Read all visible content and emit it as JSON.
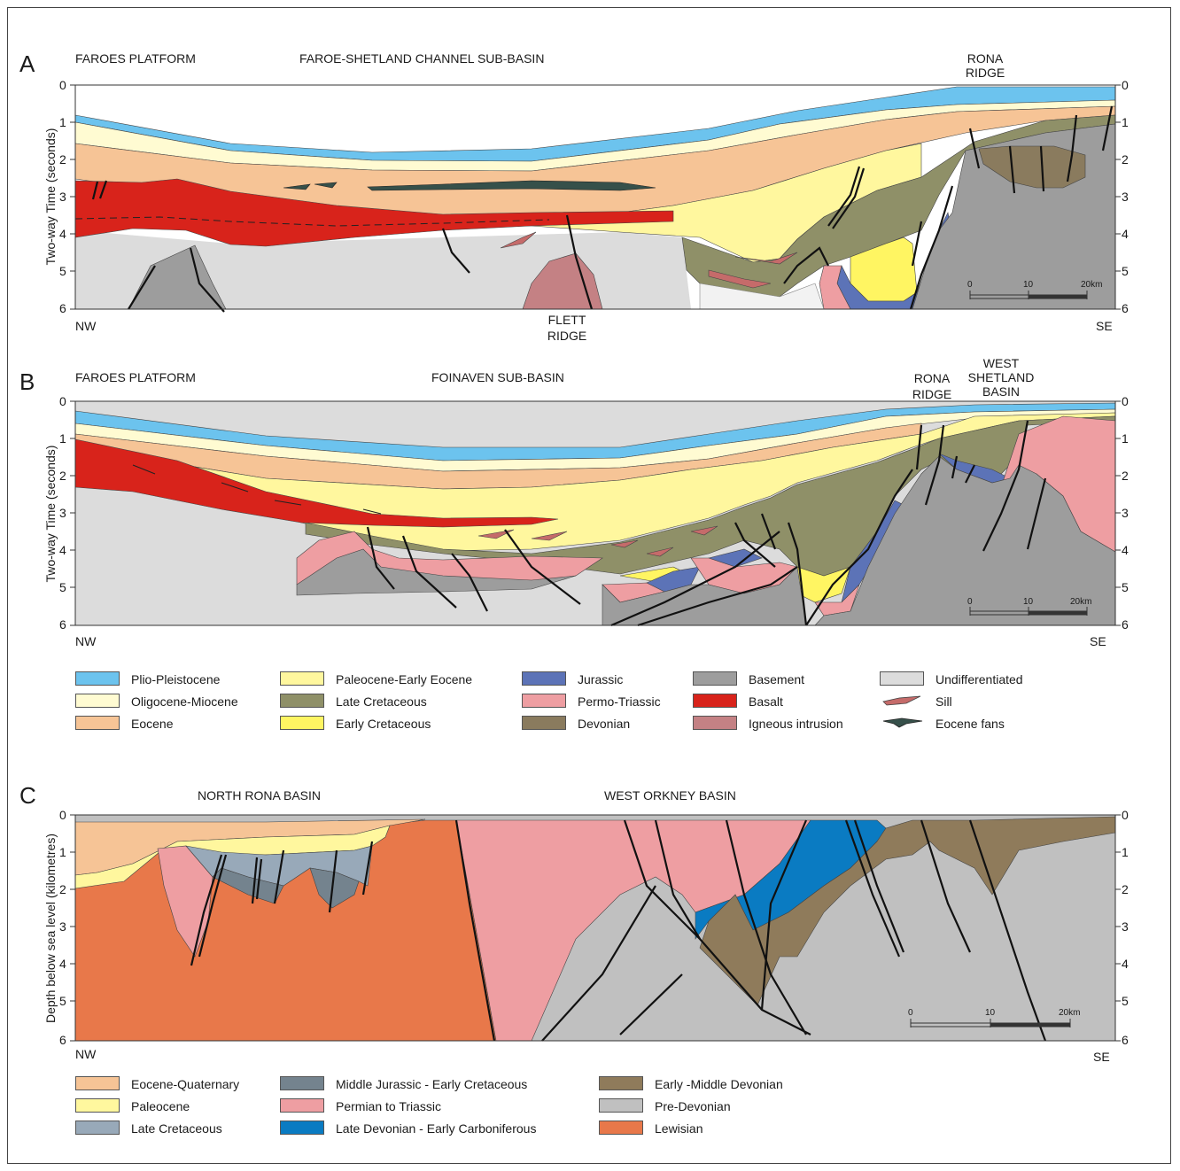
{
  "colors": {
    "plio_pleistocene": "#6cc3ee",
    "oligocene_miocene": "#fffbd2",
    "eocene": "#f6c496",
    "paleocene_early_eocene": "#fff79e",
    "late_cretaceous": "#8f9068",
    "early_cretaceous": "#fff562",
    "jurassic": "#5c73b7",
    "permo_triassic": "#ee9ea2",
    "devonian": "#8a7b5e",
    "basement": "#9d9d9d",
    "basalt": "#d8231b",
    "igneous_intrusion": "#c48184",
    "undifferentiated": "#dcdcdc",
    "sill": "#c56b6a",
    "eocene_fans": "#36504a",
    "eocene_quaternary": "#f6c496",
    "paleocene": "#fff79e",
    "late_cretaceous_c": "#98a9b9",
    "middle_jurassic_early_cretaceous": "#74838e",
    "permian_to_triassic": "#ee9ea2",
    "late_devonian_early_carboniferous": "#0a7bc2",
    "early_middle_devonian": "#8f7b5b",
    "pre_devonian": "#c0c0c0",
    "lewisian": "#e8784a"
  },
  "panel_a": {
    "letter": "A",
    "labels": {
      "faroes_platform": "FAROES PLATFORM",
      "sub_basin": "FAROE-SHETLAND CHANNEL SUB-BASIN",
      "rona_ridge": "RONA\nRIDGE",
      "flett_ridge": "FLETT\nRIDGE",
      "nw": "NW",
      "se": "SE"
    },
    "y_axis_title": "Two-way Time (seconds)",
    "ticks": [
      "0",
      "1",
      "2",
      "3",
      "4",
      "5",
      "6"
    ],
    "scale": [
      "0",
      "10",
      "20km"
    ]
  },
  "panel_b": {
    "letter": "B",
    "labels": {
      "faroes_platform": "FAROES PLATFORM",
      "sub_basin": "FOINAVEN SUB-BASIN",
      "rona_ridge": "RONA\nRIDGE",
      "west_shetland": "WEST\nSHETLAND\nBASIN",
      "nw": "NW",
      "se": "SE"
    },
    "y_axis_title": "Two-way Time (seconds)",
    "ticks": [
      "0",
      "1",
      "2",
      "3",
      "4",
      "5",
      "6"
    ],
    "scale": [
      "0",
      "10",
      "20km"
    ]
  },
  "panel_c": {
    "letter": "C",
    "labels": {
      "north_rona": "NORTH RONA BASIN",
      "west_orkney": "WEST ORKNEY BASIN",
      "nw": "NW",
      "se": "SE"
    },
    "y_axis_title": "Depth below sea level (kilometres)",
    "ticks": [
      "0",
      "1",
      "2",
      "3",
      "4",
      "5",
      "6"
    ],
    "scale": [
      "0",
      "10",
      "20km"
    ]
  },
  "legend_ab": [
    {
      "label": "Plio-Pleistocene",
      "color_key": "plio_pleistocene"
    },
    {
      "label": "Oligocene-Miocene",
      "color_key": "oligocene_miocene"
    },
    {
      "label": "Eocene",
      "color_key": "eocene"
    },
    {
      "label": "Paleocene-Early Eocene",
      "color_key": "paleocene_early_eocene"
    },
    {
      "label": "Late Cretaceous",
      "color_key": "late_cretaceous"
    },
    {
      "label": "Early Cretaceous",
      "color_key": "early_cretaceous"
    },
    {
      "label": "Jurassic",
      "color_key": "jurassic"
    },
    {
      "label": "Permo-Triassic",
      "color_key": "permo_triassic"
    },
    {
      "label": "Devonian",
      "color_key": "devonian"
    },
    {
      "label": "Basement",
      "color_key": "basement"
    },
    {
      "label": "Basalt",
      "color_key": "basalt"
    },
    {
      "label": "Igneous intrusion",
      "color_key": "igneous_intrusion"
    },
    {
      "label": "Undifferentiated",
      "color_key": "undifferentiated"
    },
    {
      "label": "Sill",
      "color_key": "sill"
    },
    {
      "label": "Eocene fans",
      "color_key": "eocene_fans"
    }
  ],
  "legend_c": [
    {
      "label": "Eocene-Quaternary",
      "color_key": "eocene_quaternary"
    },
    {
      "label": "Paleocene",
      "color_key": "paleocene"
    },
    {
      "label": "Late Cretaceous",
      "color_key": "late_cretaceous_c"
    },
    {
      "label": "Middle Jurassic - Early Cretaceous",
      "color_key": "middle_jurassic_early_cretaceous"
    },
    {
      "label": "Permian to Triassic",
      "color_key": "permian_to_triassic"
    },
    {
      "label": "Late Devonian - Early Carboniferous",
      "color_key": "late_devonian_early_carboniferous"
    },
    {
      "label": "Early -Middle Devonian",
      "color_key": "early_middle_devonian"
    },
    {
      "label": "Pre-Devonian",
      "color_key": "pre_devonian"
    },
    {
      "label": "Lewisian",
      "color_key": "lewisian"
    }
  ]
}
